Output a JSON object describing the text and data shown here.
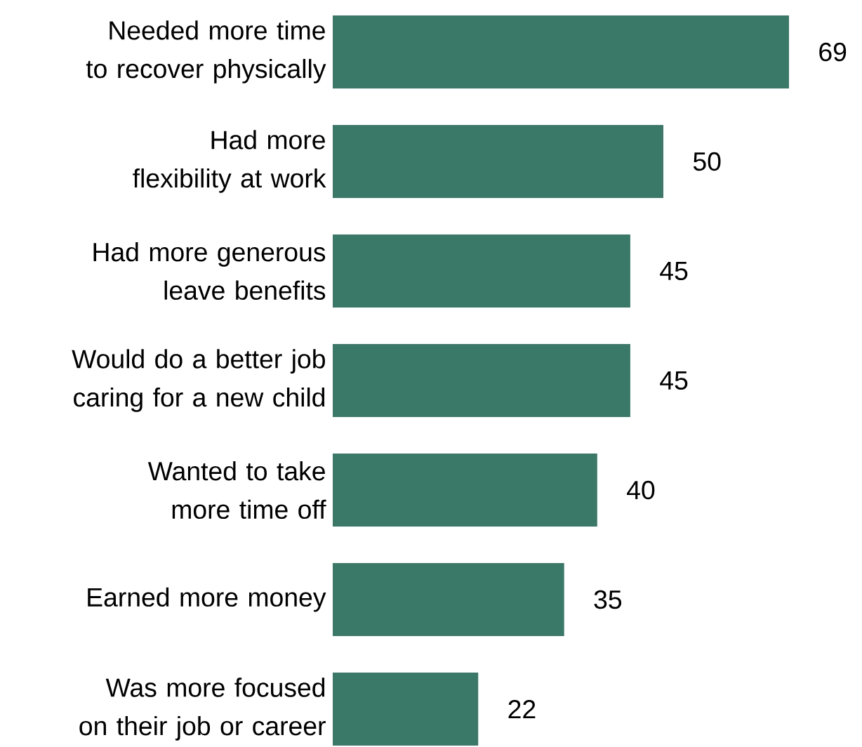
{
  "chart_data": {
    "type": "bar",
    "orientation": "horizontal",
    "categories": [
      "Needed more time to recover physically",
      "Had more flexibility at work",
      "Had more generous leave benefits",
      "Would do a better job caring for a new child",
      "Wanted to take more time off",
      "Earned more money",
      "Was more focused on their job or career"
    ],
    "values": [
      69,
      50,
      45,
      45,
      40,
      35,
      22
    ],
    "color": "#3a7868",
    "data_labels": true
  }
}
